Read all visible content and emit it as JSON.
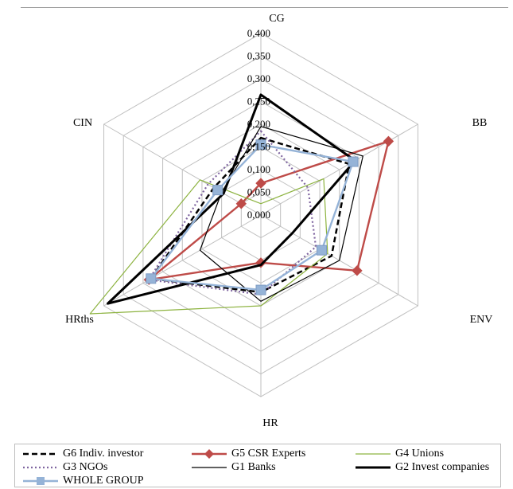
{
  "chart_data": {
    "type": "radar",
    "axes": [
      "CG",
      "BB",
      "ENV",
      "HR",
      "HRths",
      "CIN"
    ],
    "r_ticks": [
      "0,000",
      "0,050",
      "0,100",
      "0,150",
      "0,200",
      "0,250",
      "0,300",
      "0,350",
      "0,400"
    ],
    "r_range": [
      0,
      0.4
    ],
    "grid": true,
    "legend_position": "bottom",
    "series": [
      {
        "name": "G6 Indiv. investor",
        "values": [
          0.17,
          0.225,
          0.18,
          0.17,
          0.28,
          0.12
        ],
        "color": "#000000",
        "style": "dashed",
        "marker": "none"
      },
      {
        "name": "G5 CSR Experts",
        "values": [
          0.07,
          0.325,
          0.245,
          0.105,
          0.285,
          0.05
        ],
        "color": "#be4b48",
        "style": "solid",
        "marker": "diamond"
      },
      {
        "name": "G4 Unions",
        "values": [
          0.025,
          0.16,
          0.17,
          0.2,
          0.435,
          0.155
        ],
        "color": "#8db340",
        "style": "solid",
        "marker": "none"
      },
      {
        "name": "G3 NGOs",
        "values": [
          0.185,
          0.12,
          0.14,
          0.175,
          0.285,
          0.135
        ],
        "color": "#7f65a0",
        "style": "dotted",
        "marker": "none"
      },
      {
        "name": "G1 Banks",
        "values": [
          0.195,
          0.26,
          0.2,
          0.19,
          0.155,
          0.1
        ],
        "color": "#000000",
        "style": "solid",
        "marker": "none"
      },
      {
        "name": "G2 Invest companies",
        "values": [
          0.265,
          0.24,
          0.08,
          0.11,
          0.39,
          0.095
        ],
        "color": "#000000",
        "style": "thick",
        "marker": "none"
      },
      {
        "name": "WHOLE GROUP",
        "values": [
          0.155,
          0.235,
          0.155,
          0.165,
          0.28,
          0.11
        ],
        "color": "#95b3d7",
        "style": "solid",
        "marker": "square"
      }
    ]
  }
}
